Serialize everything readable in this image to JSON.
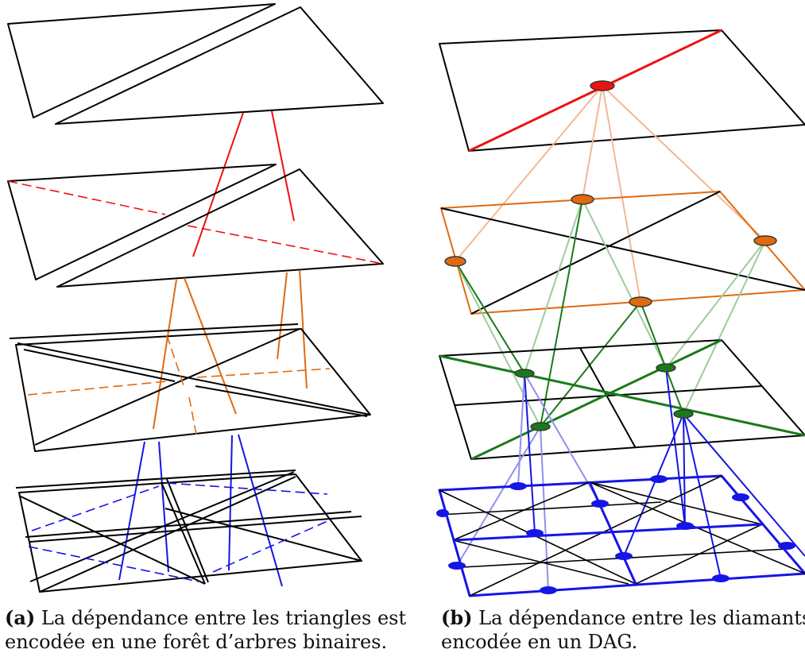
{
  "captions": {
    "a": {
      "tag": "(a)",
      "line1": "La dépendance entre les triangles est",
      "line2": "encodée en une forêt d’arbres binaires."
    },
    "b": {
      "tag": "(b)",
      "line1": "La dépendance entre les diamants es",
      "line2": "encodée en un DAG."
    }
  },
  "colors": {
    "outline": "#000000",
    "level0": "#ee1111",
    "level1": "#e06a10",
    "level2": "#1a7a1a",
    "level3": "#1515e6",
    "level0_light": "#f2b896",
    "level1_light": "#9ccc9c",
    "level2_light": "#8f8ff2"
  }
}
